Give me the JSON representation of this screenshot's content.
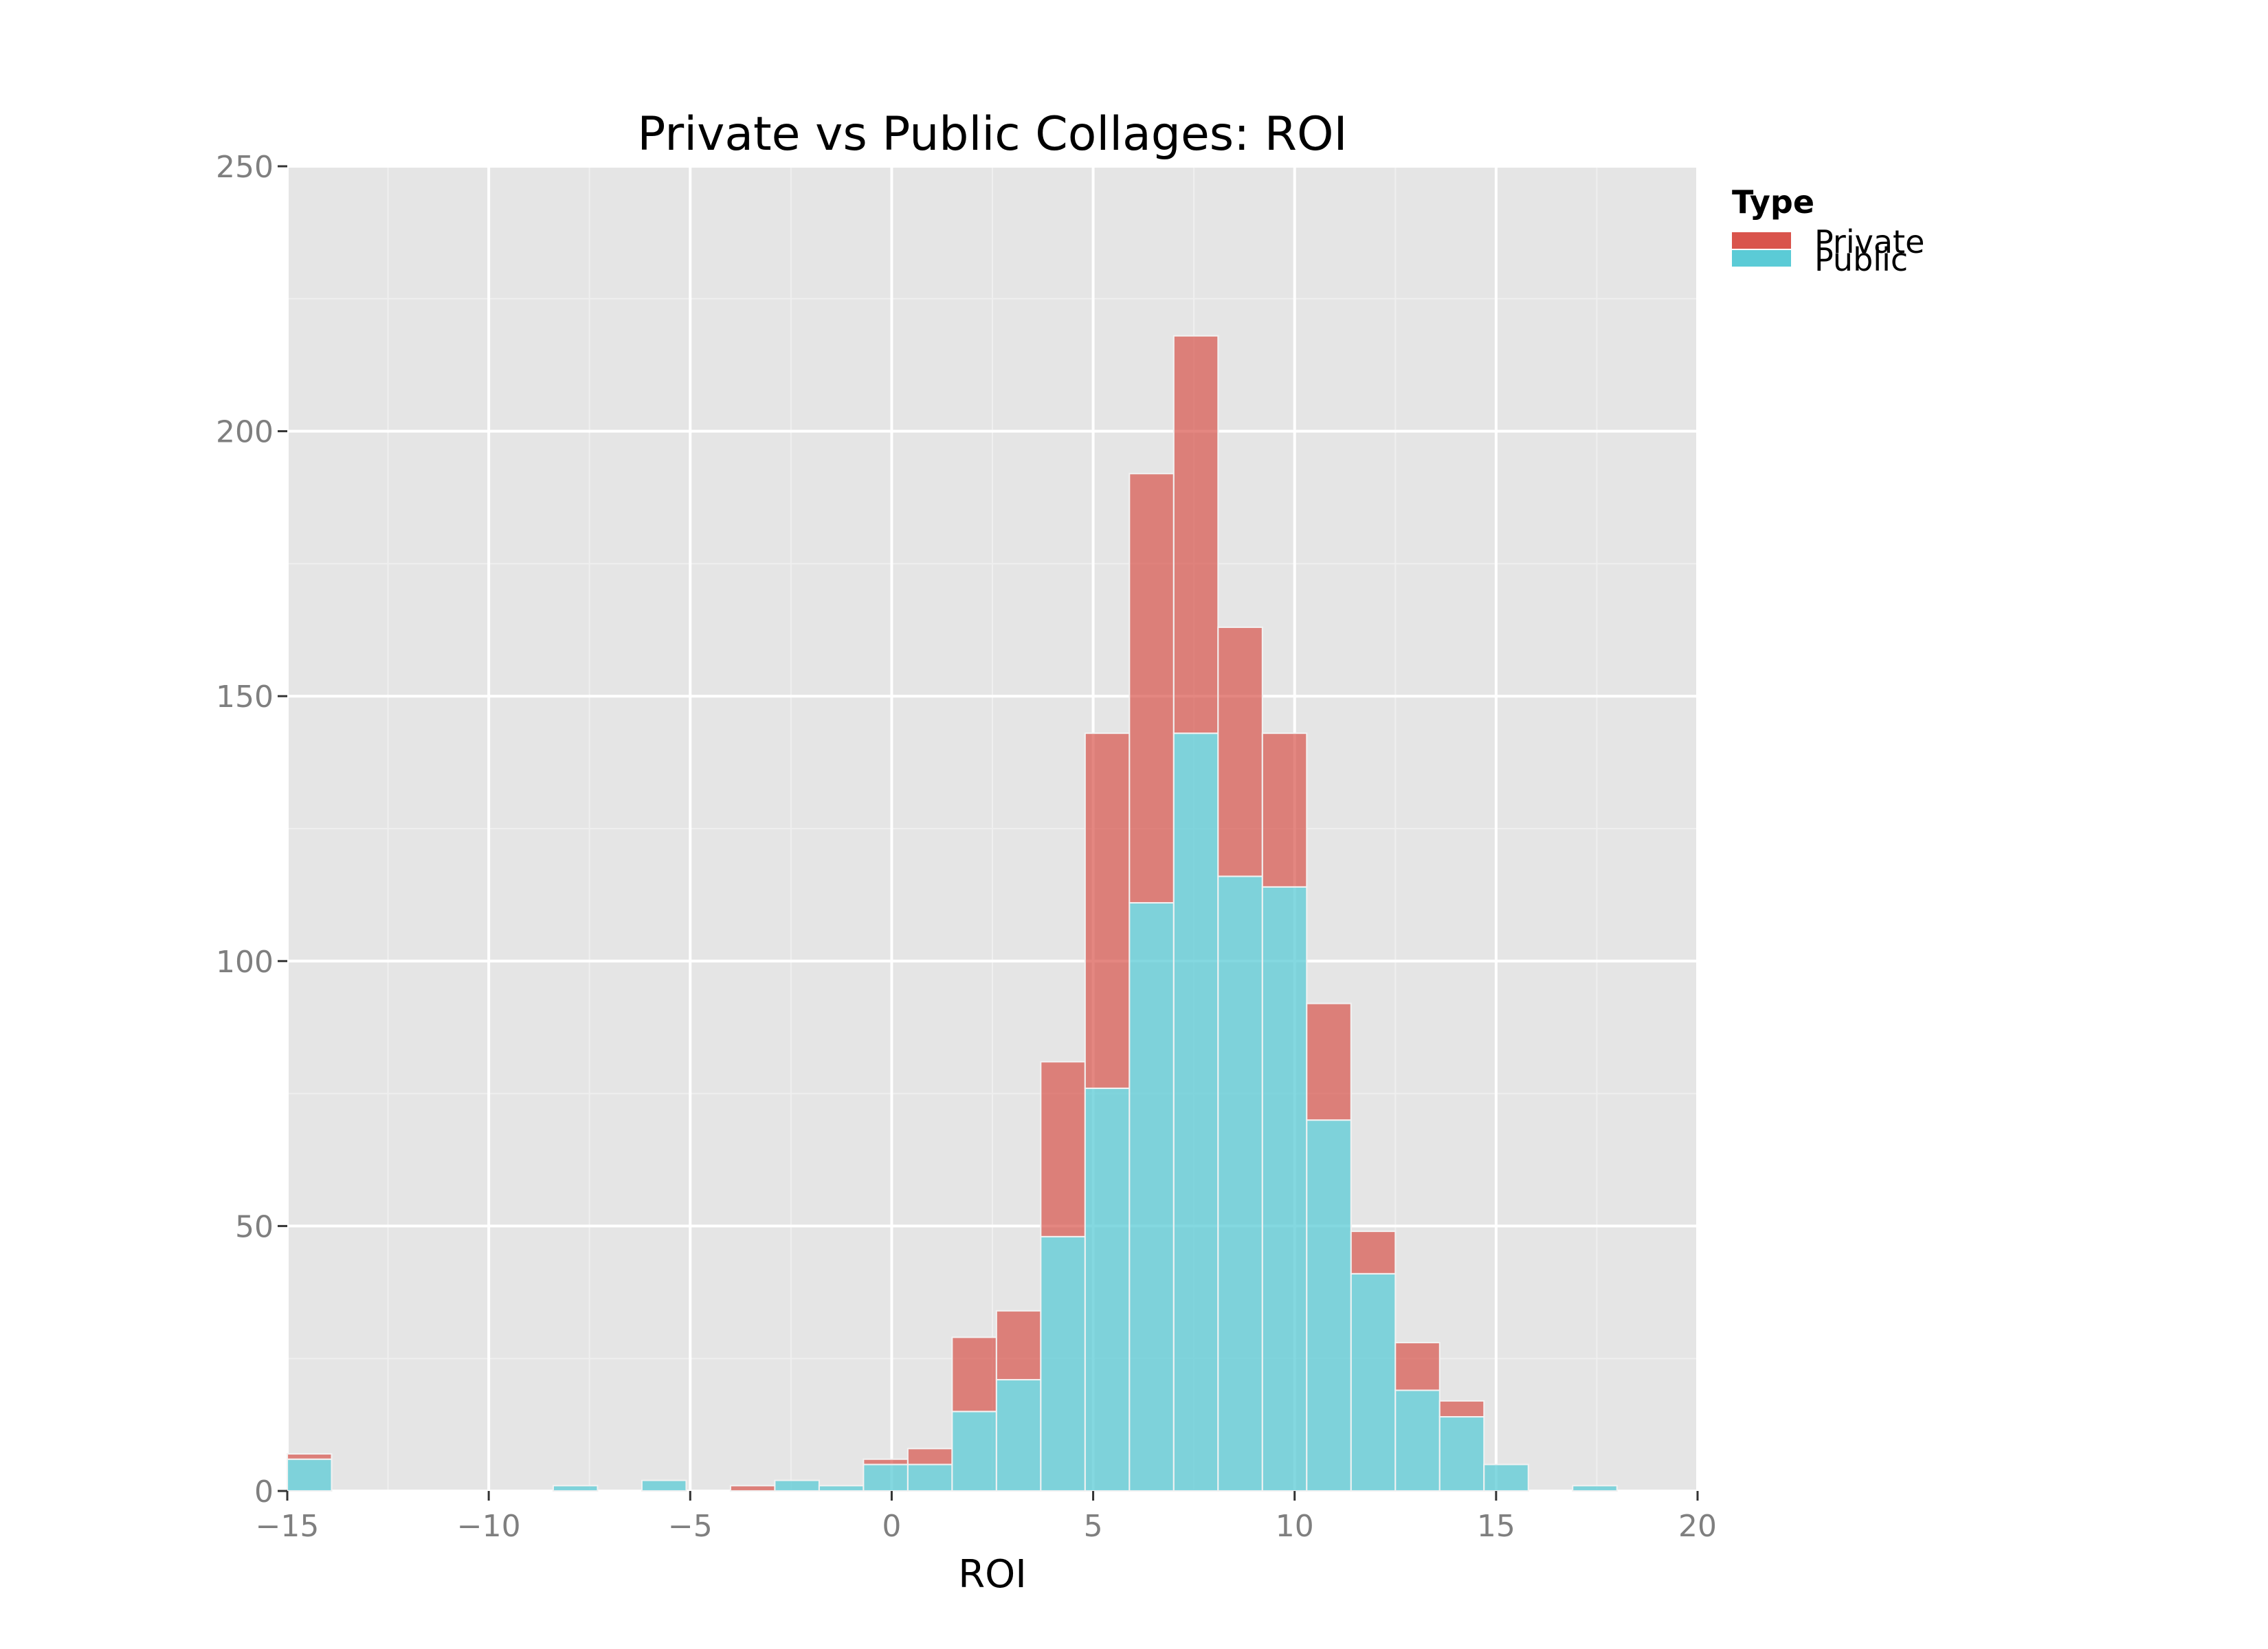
{
  "chart_data": {
    "type": "bar",
    "title": "Private vs Public Collages: ROI",
    "xlabel": "ROI",
    "ylabel": "",
    "xlim": [
      -15,
      20
    ],
    "ylim": [
      0,
      250
    ],
    "x_ticks": [
      -15,
      -10,
      -5,
      0,
      5,
      10,
      15,
      20
    ],
    "x_tick_labels": [
      "−15",
      "−10",
      "−5",
      "0",
      "5",
      "10",
      "15",
      "20"
    ],
    "y_ticks": [
      0,
      50,
      100,
      150,
      200,
      250
    ],
    "y_tick_labels": [
      "0",
      "50",
      "100",
      "150",
      "200",
      "250"
    ],
    "stacked": true,
    "grid": true,
    "legend": {
      "title": "Type",
      "position": "right",
      "labels": [
        "Private",
        "Public"
      ]
    },
    "bin_edges": [
      -15,
      -13.9,
      -12.8,
      -11.7,
      -10.6,
      -9.5,
      -8.4,
      -7.3,
      -6.2,
      -5.1,
      -4.0,
      -2.9,
      -1.8,
      -0.7,
      0.4,
      1.5,
      2.6,
      3.7,
      4.8,
      5.9,
      7.0,
      8.1,
      9.2,
      10.3,
      11.4,
      12.5,
      13.6,
      14.7,
      15.8,
      16.9,
      18.0,
      19.1
    ],
    "series": [
      {
        "name": "Public",
        "values": [
          6,
          0,
          0,
          0,
          0,
          0,
          1,
          0,
          2,
          0,
          0,
          2,
          1,
          5,
          5,
          15,
          21,
          48,
          76,
          111,
          143,
          116,
          114,
          70,
          41,
          19,
          14,
          5,
          0,
          1,
          0
        ]
      },
      {
        "name": "Private",
        "values": [
          1,
          0,
          0,
          0,
          0,
          0,
          0,
          0,
          0,
          0,
          1,
          0,
          0,
          1,
          3,
          14,
          13,
          33,
          67,
          81,
          75,
          47,
          29,
          22,
          8,
          9,
          3,
          0,
          0,
          0,
          0
        ]
      }
    ],
    "colors": {
      "Private": "#d9544c",
      "Public": "#5bcbd6",
      "panel_bg": "#e5e5e5",
      "grid_major": "#ffffff",
      "grid_minor": "#efefef",
      "bar_edge": "#f2f2f2"
    }
  }
}
